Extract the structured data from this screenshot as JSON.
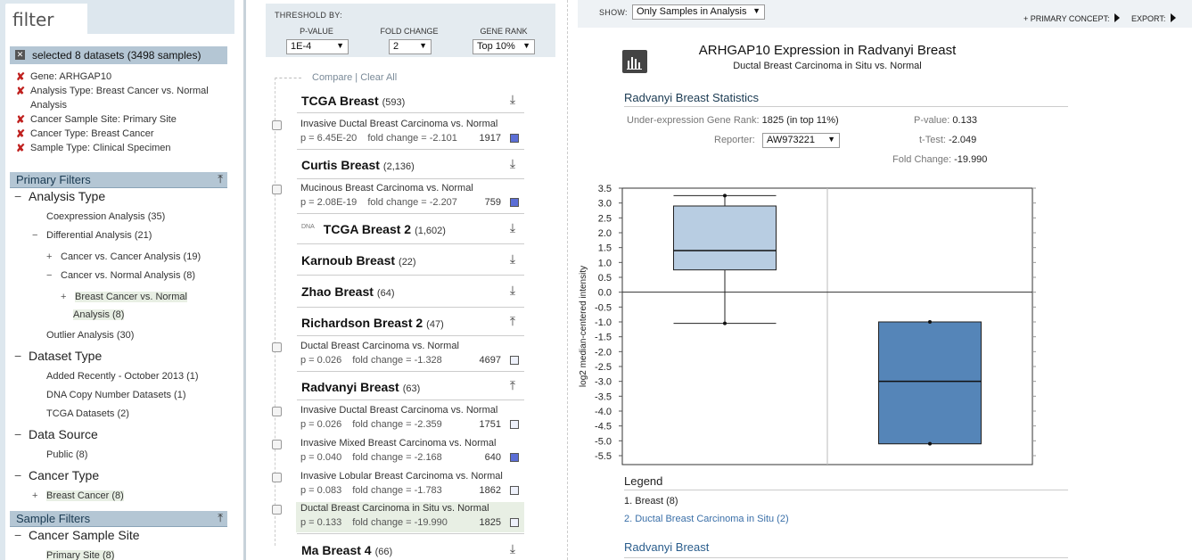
{
  "filter": {
    "tab_label": "filter",
    "selected_header": "selected 8 datasets (3498 samples)",
    "selected_items": [
      "Gene: ARHGAP10",
      "Analysis Type: Breast Cancer vs. Normal Analysis",
      "Cancer Sample Site: Primary Site",
      "Cancer Type: Breast Cancer",
      "Sample Type: Clinical Specimen"
    ],
    "primary_filters_label": "Primary Filters",
    "analysis_type_label": "Analysis Type",
    "coexpression": "Coexpression Analysis (35)",
    "differential": "Differential Analysis (21)",
    "cancer_vs_cancer": "Cancer vs. Cancer Analysis (19)",
    "cancer_vs_normal": "Cancer vs. Normal Analysis (8)",
    "breast_vs_normal_1": "Breast Cancer vs. Normal",
    "breast_vs_normal_2": "Analysis (8)",
    "outlier": "Outlier Analysis (30)",
    "dataset_type_label": "Dataset Type",
    "added_recently": "Added Recently - October 2013 (1)",
    "dna_copy": "DNA Copy Number Datasets (1)",
    "tcga_datasets": "TCGA Datasets (2)",
    "data_source_label": "Data Source",
    "public": "Public (8)",
    "cancer_type_label": "Cancer Type",
    "breast_cancer": "Breast Cancer (8)",
    "sample_filters_label": "Sample Filters",
    "cancer_sample_site_label": "Cancer Sample Site",
    "primary_site": "Primary Site (8)"
  },
  "threshold": {
    "label": "THRESHOLD BY:",
    "pvalue_label": "P-VALUE",
    "pvalue": "1E-4",
    "fold_label": "FOLD CHANGE",
    "fold": "2",
    "rank_label": "GENE RANK",
    "rank": "Top 10%"
  },
  "compare_label": "Compare",
  "clear_label": "Clear All",
  "datasets": [
    {
      "title": "TCGA Breast",
      "count": "(593)"
    },
    {
      "title": "Curtis Breast",
      "count": "(2,136)"
    },
    {
      "title": "TCGA Breast 2",
      "count": "(1,602)",
      "prefix": "DNA"
    },
    {
      "title": "Karnoub Breast",
      "count": "(22)"
    },
    {
      "title": "Zhao Breast",
      "count": "(64)"
    },
    {
      "title": "Richardson Breast 2",
      "count": "(47)"
    },
    {
      "title": "Radvanyi Breast",
      "count": "(63)"
    },
    {
      "title": "Ma Breast 4",
      "count": "(66)"
    }
  ],
  "analyses": [
    {
      "name": "Invasive Ductal Breast Carcinoma vs. Normal",
      "p": "p = 6.45E-20",
      "fc": "fold change = -2.101",
      "rank": "1917",
      "color": "#5b6ed6"
    },
    {
      "name": "Mucinous Breast Carcinoma vs. Normal",
      "p": "p = 2.08E-19",
      "fc": "fold change = -2.207",
      "rank": "759",
      "color": "#5b6ed6"
    },
    {
      "name": "Ductal Breast Carcinoma vs. Normal",
      "p": "p = 0.026",
      "fc": "fold change = -1.328",
      "rank": "4697",
      "color": "#eef1fb"
    },
    {
      "name": "Invasive Ductal Breast Carcinoma vs. Normal",
      "p": "p = 0.026",
      "fc": "fold change = -2.359",
      "rank": "1751",
      "color": "#eef1fb"
    },
    {
      "name": "Invasive Mixed Breast Carcinoma vs. Normal",
      "p": "p = 0.040",
      "fc": "fold change = -2.168",
      "rank": "640",
      "color": "#5b6ed6"
    },
    {
      "name": "Invasive Lobular Breast Carcinoma vs. Normal",
      "p": "p = 0.083",
      "fc": "fold change = -1.783",
      "rank": "1862",
      "color": "#eef1fb"
    },
    {
      "name": "Ductal Breast Carcinoma in Situ vs. Normal",
      "p": "p = 0.133",
      "fc": "fold change = -19.990",
      "rank": "1825",
      "color": "#eef1fb"
    }
  ],
  "detail": {
    "show_label": "SHOW:",
    "show_value": "Only Samples in Analysis",
    "primary_concept": "+ PRIMARY CONCEPT:",
    "export": "EXPORT:",
    "title": "ARHGAP10 Expression in Radvanyi Breast",
    "subtitle": "Ductal Breast Carcinoma in Situ vs. Normal",
    "stats_title": "Radvanyi Breast Statistics",
    "gene_rank_label": "Under-expression Gene Rank:",
    "gene_rank_value": "1825 (in top 11%)",
    "reporter_label": "Reporter:",
    "reporter_value": "AW973221",
    "pvalue_label": "P-value:",
    "pvalue_value": "0.133",
    "ttest_label": "t-Test:",
    "ttest_value": "-2.049",
    "fold_label": "Fold Change:",
    "fold_value": "-19.990",
    "legend_title": "Legend",
    "legend_1": "1. Breast (8)",
    "legend_2": "2. Ductal Breast Carcinoma in Situ (2)",
    "footer_title": "Radvanyi Breast"
  },
  "chart_data": {
    "type": "box",
    "ylabel": "log2 median-centered intensity",
    "ylim": [
      -5.8,
      3.5
    ],
    "yticks": [
      "3.5",
      "3.0",
      "2.5",
      "2.0",
      "1.5",
      "1.0",
      "0.5",
      "0.0",
      "-0.5",
      "-1.0",
      "-1.5",
      "-2.0",
      "-2.5",
      "-3.0",
      "-3.5",
      "-4.0",
      "-4.5",
      "-5.0",
      "-5.5"
    ],
    "categories": [
      "1",
      "2"
    ],
    "boxes": [
      {
        "category": "1",
        "min": -1.05,
        "q1": 0.75,
        "median": 1.4,
        "q3": 2.9,
        "max": 3.25,
        "color": "#b8cde2"
      },
      {
        "category": "2",
        "min": -5.1,
        "q1": -5.1,
        "median": -3.0,
        "q3": -1.0,
        "max": -1.0,
        "color": "#5585b8"
      }
    ],
    "grid": "vertical-divider",
    "colors": {
      "box1": "#b8cde2",
      "box2": "#5585b8"
    }
  }
}
